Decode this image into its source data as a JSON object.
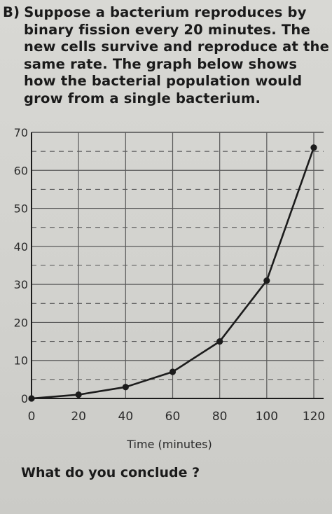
{
  "question": {
    "label": "B)",
    "lines": [
      "Suppose a bacterium reproduces by",
      "binary fission every 20 minutes. The",
      "new cells survive and reproduce at the",
      "same rate. The graph below shows",
      "how the bacterial population would",
      "grow from a single bacterium."
    ]
  },
  "chart_data": {
    "type": "line",
    "x": [
      0,
      20,
      40,
      60,
      80,
      100,
      120
    ],
    "series": [
      {
        "values": [
          0,
          1,
          3,
          7,
          15,
          31,
          66
        ]
      }
    ],
    "xlabel": "Time (minutes)",
    "ylabel": "",
    "xlim": [
      0,
      120
    ],
    "ylim": [
      0,
      70
    ],
    "xticks": [
      "0",
      "20",
      "40",
      "60",
      "80",
      "100",
      "120"
    ],
    "yticks": [
      "0",
      "10",
      "20",
      "30",
      "40",
      "50",
      "60",
      "70"
    ],
    "grid": true,
    "colors": {
      "line": "#1c1c1c",
      "grid": "#5a5a5a",
      "markers": "#1c1c1c"
    }
  },
  "footer": {
    "prompt": "What do you conclude ?"
  }
}
